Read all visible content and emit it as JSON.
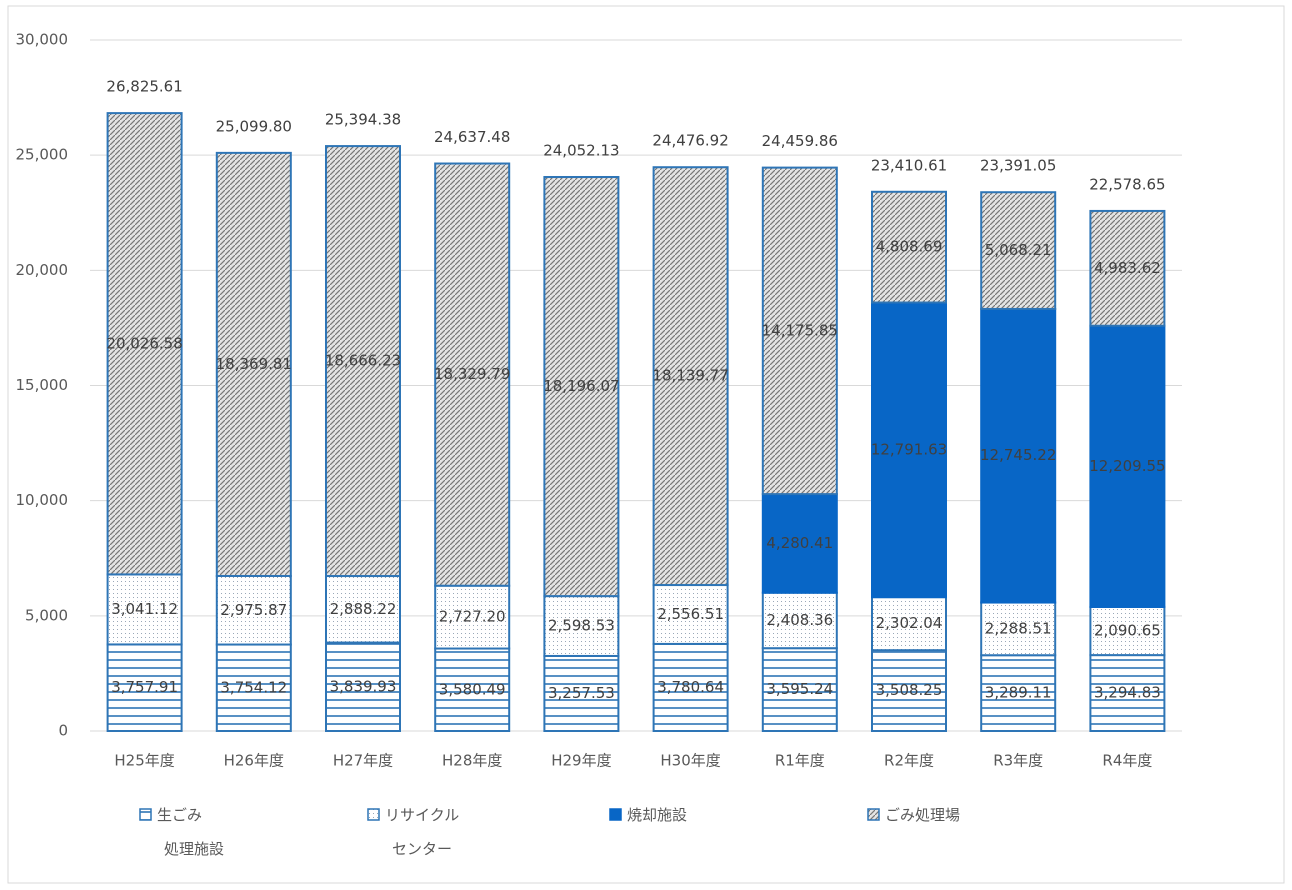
{
  "chart_data": {
    "type": "stacked_bar",
    "categories": [
      "H25年度",
      "H26年度",
      "H27年度",
      "H28年度",
      "H29年度",
      "H30年度",
      "R1年度",
      "R2年度",
      "R3年度",
      "R4年度"
    ],
    "series": [
      {
        "name": "生ごみ\n処理施設",
        "color": "#2e75b6",
        "pattern": "horizontal",
        "values": [
          3757.91,
          3754.12,
          3839.93,
          3580.49,
          3257.53,
          3780.64,
          3595.24,
          3508.25,
          3289.11,
          3294.83
        ],
        "value_labels": [
          "3,757.91",
          "3,754.12",
          "3,839.93",
          "3,580.49",
          "3,257.53",
          "3,780.64",
          "3,595.24",
          "3,508.25",
          "3,289.11",
          "3,294.83"
        ]
      },
      {
        "name": "リサイクル\nセンター",
        "color": "#2e75b6",
        "pattern": "dots",
        "values": [
          3041.12,
          2975.87,
          2888.22,
          2727.2,
          2598.53,
          2556.51,
          2408.36,
          2302.04,
          2288.51,
          2090.65
        ],
        "value_labels": [
          "3,041.12",
          "2,975.87",
          "2,888.22",
          "2,727.20",
          "2,598.53",
          "2,556.51",
          "2,408.36",
          "2,302.04",
          "2,288.51",
          "2,090.65"
        ]
      },
      {
        "name": "焼却施設",
        "color": "#0866c6",
        "pattern": "solid",
        "values": [
          null,
          null,
          null,
          null,
          null,
          null,
          4280.41,
          12791.63,
          12745.22,
          12209.55
        ],
        "value_labels": [
          null,
          null,
          null,
          null,
          null,
          null,
          "4,280.41",
          "12,791.63",
          "12,745.22",
          "12,209.55"
        ]
      },
      {
        "name": "ごみ処理場",
        "color": "#2e75b6",
        "pattern": "diagonal",
        "values": [
          20026.58,
          18369.81,
          18666.23,
          18329.79,
          18196.07,
          18139.77,
          14175.85,
          4808.69,
          5068.21,
          4983.62
        ],
        "value_labels": [
          "20,026.58",
          "18,369.81",
          "18,666.23",
          "18,329.79",
          "18,196.07",
          "18,139.77",
          "14,175.85",
          "4,808.69",
          "5,068.21",
          "4,983.62"
        ]
      }
    ],
    "totals": [
      26825.61,
      25099.8,
      25394.38,
      24637.48,
      24052.13,
      24476.92,
      24459.86,
      23410.61,
      23391.05,
      22578.65
    ],
    "total_labels": [
      "26,825.61",
      "25,099.80",
      "25,394.38",
      "24,637.48",
      "24,052.13",
      "24,476.92",
      "24,459.86",
      "23,410.61",
      "23,391.05",
      "22,578.65"
    ],
    "ylim": [
      0,
      30000
    ],
    "yticks": [
      0,
      {
        "value": 5000,
        "label": "5,000"
      },
      {
        "value": 10000,
        "label": "10,000"
      },
      {
        "value": 15000,
        "label": "15,000"
      },
      {
        "value": 20000,
        "label": "20,000"
      },
      {
        "value": 25000,
        "label": "25,000"
      },
      {
        "value": 30000,
        "label": "30,000"
      }
    ],
    "grid": true,
    "legend": "bottom"
  }
}
